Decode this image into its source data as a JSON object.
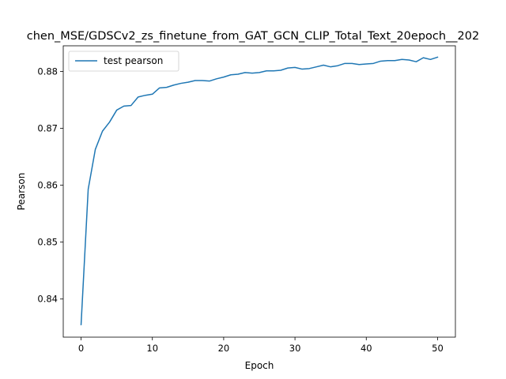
{
  "chart_data": {
    "type": "line",
    "title": "chen_MSE/GDSCv2_zs_finetune_from_GAT_GCN_CLIP_Total_Text_20epoch__202",
    "xlabel": "Epoch",
    "ylabel": "Pearson",
    "xlim": [
      -2.5,
      52.5
    ],
    "ylim": [
      0.8333,
      0.8845
    ],
    "xticks": [
      0,
      10,
      20,
      30,
      40,
      50
    ],
    "yticks": [
      0.84,
      0.85,
      0.86,
      0.87,
      0.88
    ],
    "ytick_labels": [
      "0.84",
      "0.85",
      "0.86",
      "0.87",
      "0.88"
    ],
    "grid": false,
    "legend_position": "upper left",
    "series": [
      {
        "name": "test pearson",
        "color": "#1f77b4",
        "x": [
          0,
          1,
          2,
          3,
          4,
          5,
          6,
          7,
          8,
          9,
          10,
          11,
          12,
          13,
          14,
          15,
          16,
          17,
          18,
          19,
          20,
          21,
          22,
          23,
          24,
          25,
          26,
          27,
          28,
          29,
          30,
          31,
          32,
          33,
          34,
          35,
          36,
          37,
          38,
          39,
          40,
          41,
          42,
          43,
          44,
          45,
          46,
          47,
          48,
          49,
          50
        ],
        "values": [
          0.8355,
          0.8593,
          0.8663,
          0.8695,
          0.8711,
          0.8732,
          0.8739,
          0.874,
          0.8755,
          0.8758,
          0.876,
          0.8771,
          0.8772,
          0.8776,
          0.8779,
          0.8781,
          0.8784,
          0.8784,
          0.8783,
          0.8787,
          0.879,
          0.8794,
          0.8795,
          0.8798,
          0.8797,
          0.8798,
          0.8801,
          0.8801,
          0.8802,
          0.8806,
          0.8807,
          0.8804,
          0.8805,
          0.8808,
          0.8811,
          0.8808,
          0.881,
          0.8814,
          0.8814,
          0.8812,
          0.8813,
          0.8814,
          0.8818,
          0.8819,
          0.8819,
          0.8821,
          0.882,
          0.8817,
          0.8824,
          0.8821,
          0.8825
        ]
      }
    ]
  }
}
